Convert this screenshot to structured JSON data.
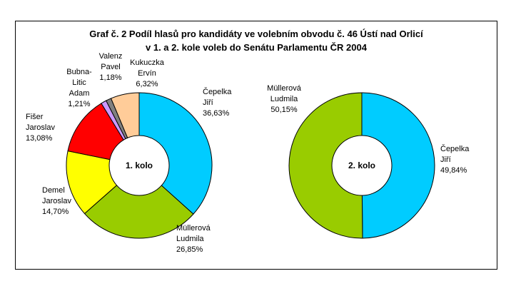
{
  "colors": {
    "background": "#ffffff",
    "frame_border": "#000000"
  },
  "chart_data": [
    {
      "type": "pie",
      "variant": "donut",
      "title": [
        "Graf č. 2 Podíl hlasů pro kandidáty ve volebním obvodu č. 46 Ústí nad Orlicí",
        "v 1. a 2. kole voleb do Senátu Parlamentu ČR 2004"
      ],
      "center_label": "1. kolo",
      "slices": [
        {
          "name": "Čepelka Jiří",
          "label_lines": [
            "Čepelka",
            "Jiří"
          ],
          "value_label": "36,63%",
          "value": 36.63,
          "color": "#00ccff"
        },
        {
          "name": "Müllerová Ludmila",
          "label_lines": [
            "Müllerová",
            "Ludmila"
          ],
          "value_label": "26,85%",
          "value": 26.85,
          "color": "#99cc00"
        },
        {
          "name": "Demel Jaroslav",
          "label_lines": [
            "Demel",
            "Jaroslav"
          ],
          "value_label": "14,70%",
          "value": 14.7,
          "color": "#ffff00"
        },
        {
          "name": "Fišer Jaroslav",
          "label_lines": [
            "Fišer",
            "Jaroslav"
          ],
          "value_label": "13,08%",
          "value": 13.08,
          "color": "#ff0000"
        },
        {
          "name": "Bubna-Litic Adam",
          "label_lines": [
            "Bubna-",
            "Litic",
            "Adam"
          ],
          "value_label": "1,21%",
          "value": 1.21,
          "color": "#cc99ff"
        },
        {
          "name": "Valenz Pavel",
          "label_lines": [
            "Valenz",
            "Pavel"
          ],
          "value_label": "1,18%",
          "value": 1.18,
          "color": "#808080"
        },
        {
          "name": "Kukuczka Ervín",
          "label_lines": [
            "Kukuczka",
            "Ervín"
          ],
          "value_label": "6,32%",
          "value": 6.32,
          "color": "#ffcc99"
        }
      ]
    },
    {
      "type": "pie",
      "variant": "donut",
      "center_label": "2. kolo",
      "slices": [
        {
          "name": "Čepelka Jiří",
          "label_lines": [
            "Čepelka",
            "Jiří"
          ],
          "value_label": "49,84%",
          "value": 49.84,
          "color": "#00ccff"
        },
        {
          "name": "Müllerová Ludmila",
          "label_lines": [
            "Müllerová",
            "Ludmila"
          ],
          "value_label": "50,15%",
          "value": 50.15,
          "color": "#99cc00"
        }
      ]
    }
  ]
}
